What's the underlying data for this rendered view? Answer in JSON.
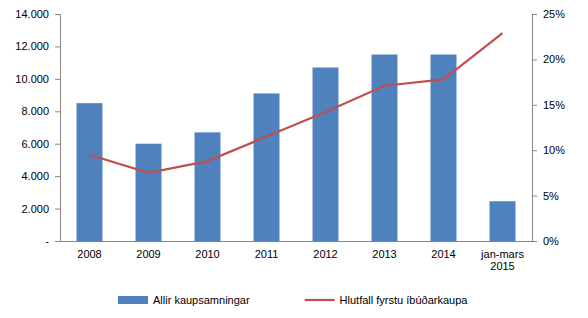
{
  "chart_data": {
    "type": "bar",
    "categories": [
      "2008",
      "2009",
      "2010",
      "2011",
      "2012",
      "2013",
      "2014",
      "jan-mars 2015"
    ],
    "series": [
      {
        "name": "Allir kaupsamningar",
        "type": "bar",
        "color": "#4f81bd",
        "values": [
          8500,
          6000,
          6700,
          9100,
          10700,
          11500,
          11500,
          2450
        ]
      },
      {
        "name": "Hlutfall fyrstu íbúðarkaupa",
        "type": "line",
        "axis": "y2",
        "color": "#c0504d",
        "line_style": "solid",
        "values": [
          9.5,
          7.5,
          8.8,
          11.5,
          14.2,
          17.1,
          17.8,
          22.9
        ]
      }
    ],
    "ylim": [
      0,
      14000
    ],
    "yticks": [
      {
        "value": 0,
        "label": "-"
      },
      {
        "value": 2000,
        "label": "2.000"
      },
      {
        "value": 4000,
        "label": "4.000"
      },
      {
        "value": 6000,
        "label": "6.000"
      },
      {
        "value": 8000,
        "label": "8.000"
      },
      {
        "value": 10000,
        "label": "10.000"
      },
      {
        "value": 12000,
        "label": "12.000"
      },
      {
        "value": 14000,
        "label": "14.000"
      }
    ],
    "y2lim": [
      0,
      25
    ],
    "y2ticks": [
      {
        "value": 0,
        "label": "0%"
      },
      {
        "value": 5,
        "label": "5%"
      },
      {
        "value": 10,
        "label": "10%"
      },
      {
        "value": 15,
        "label": "15%"
      },
      {
        "value": 20,
        "label": "20%"
      },
      {
        "value": 25,
        "label": "25%"
      }
    ],
    "grid": false,
    "legend": "bottom"
  }
}
